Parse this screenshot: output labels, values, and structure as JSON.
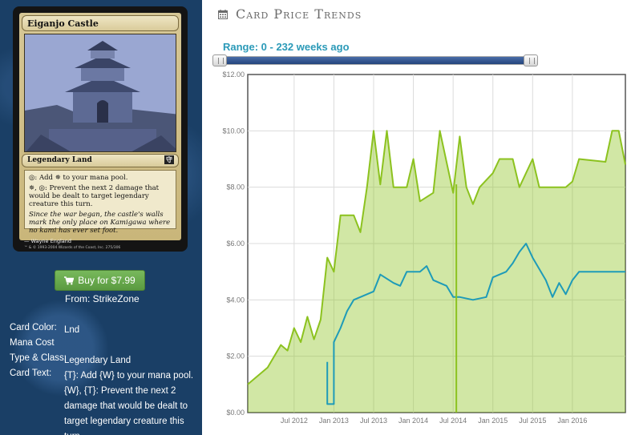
{
  "card": {
    "name": "Eiganjo Castle",
    "type_line": "Legendary Land",
    "set_symbol": "守",
    "rules": [
      "{T}: Add {W} to your mana pool.",
      "{W}, {T}: Prevent the next 2 damage that would be dealt to target legendary creature this turn."
    ],
    "rules_display": [
      "◎: Add ✵ to your mana pool.",
      "✵, ◎: Prevent the next 2 damage that would be dealt to target legendary creature this turn."
    ],
    "flavor": "Since the war began, the castle's walls mark the only place on Kamigawa where no kami has ever set foot.",
    "artist": "Wayne England",
    "copyright": "™ & © 1993-2004 Wizards of the Coast, Inc. 275/306"
  },
  "buy": {
    "label": "Buy for $7.99",
    "icon": "cart-icon",
    "from": "From: StrikeZone"
  },
  "details": [
    {
      "label": "Card Color:",
      "value": "Lnd"
    },
    {
      "label": "Mana Cost",
      "value": ""
    },
    {
      "label": "Type & Class:",
      "value": "Legendary Land"
    },
    {
      "label": "Card Text:",
      "value": "{T}: Add {W} to your mana pool. {W}, {T}: Prevent the next 2 damage that would be dealt to target legendary creature this turn."
    }
  ],
  "section": {
    "title": "Card Price Trends",
    "icon": "calendar-icon"
  },
  "range": {
    "label": "Range: 0 - 232 weeks ago"
  },
  "colors": {
    "accent": "#2b9ab8",
    "buy_green": "#6aab4f",
    "panel_blue": "#1a3f66",
    "series_green": "#8cc21f",
    "series_blue": "#1e9bb8"
  },
  "chart_data": {
    "type": "line",
    "x_ticks": [
      "Jul 2012",
      "Jan 2013",
      "Jul 2013",
      "Jan 2014",
      "Jul 2014",
      "Jan 2015",
      "Jul 2015",
      "Jan 2016"
    ],
    "y_ticks": [
      "$0.00",
      "$2.00",
      "$4.00",
      "$6.00",
      "$8.00",
      "$10.00",
      "$12.00"
    ],
    "ylim": [
      0,
      12
    ],
    "xlim": [
      "2011-12",
      "2016-09"
    ],
    "grid": true,
    "series": [
      {
        "color": "#8cc21f",
        "area": true,
        "points": [
          [
            "2011-12",
            1.0
          ],
          [
            "2012-03",
            1.6
          ],
          [
            "2012-05",
            2.4
          ],
          [
            "2012-06",
            2.2
          ],
          [
            "2012-07",
            3.0
          ],
          [
            "2012-08",
            2.5
          ],
          [
            "2012-09",
            3.4
          ],
          [
            "2012-10",
            2.6
          ],
          [
            "2012-11",
            3.3
          ],
          [
            "2012-12",
            5.5
          ],
          [
            "2013-01",
            5.0
          ],
          [
            "2013-02",
            7.0
          ],
          [
            "2013-04",
            7.0
          ],
          [
            "2013-05",
            6.4
          ],
          [
            "2013-06",
            8.0
          ],
          [
            "2013-07",
            10.0
          ],
          [
            "2013-08",
            8.1
          ],
          [
            "2013-09",
            10.0
          ],
          [
            "2013-10",
            8.0
          ],
          [
            "2013-12",
            8.0
          ],
          [
            "2014-01",
            9.0
          ],
          [
            "2014-02",
            7.5
          ],
          [
            "2014-04",
            7.8
          ],
          [
            "2014-05",
            10.0
          ],
          [
            "2014-07",
            7.8
          ],
          [
            "2014-08",
            9.8
          ],
          [
            "2014-09",
            8.0
          ],
          [
            "2014-10",
            7.4
          ],
          [
            "2014-11",
            8.0
          ],
          [
            "2015-01",
            8.5
          ],
          [
            "2015-02",
            9.0
          ],
          [
            "2015-04",
            9.0
          ],
          [
            "2015-05",
            8.0
          ],
          [
            "2015-07",
            9.0
          ],
          [
            "2015-08",
            8.0
          ],
          [
            "2015-12",
            8.0
          ],
          [
            "2016-01",
            8.2
          ],
          [
            "2016-02",
            9.0
          ],
          [
            "2016-06",
            8.9
          ],
          [
            "2016-07",
            10.0
          ],
          [
            "2016-08",
            10.0
          ],
          [
            "2016-09",
            8.8
          ]
        ]
      },
      {
        "color": "#1e9bb8",
        "area": false,
        "points": [
          [
            "2012-12",
            1.8
          ],
          [
            "2012-12",
            0.3
          ],
          [
            "2013-01",
            0.3
          ],
          [
            "2013-01",
            2.5
          ],
          [
            "2013-02",
            3.0
          ],
          [
            "2013-03",
            3.6
          ],
          [
            "2013-04",
            4.0
          ],
          [
            "2013-05",
            4.1
          ],
          [
            "2013-07",
            4.3
          ],
          [
            "2013-08",
            4.9
          ],
          [
            "2013-10",
            4.6
          ],
          [
            "2013-11",
            4.5
          ],
          [
            "2013-12",
            5.0
          ],
          [
            "2014-02",
            5.0
          ],
          [
            "2014-03",
            5.2
          ],
          [
            "2014-04",
            4.7
          ],
          [
            "2014-06",
            4.5
          ],
          [
            "2014-07",
            4.1
          ],
          [
            "2014-08",
            4.1
          ],
          [
            "2014-10",
            4.0
          ],
          [
            "2014-12",
            4.1
          ],
          [
            "2015-01",
            4.8
          ],
          [
            "2015-03",
            5.0
          ],
          [
            "2015-04",
            5.3
          ],
          [
            "2015-05",
            5.7
          ],
          [
            "2015-06",
            6.0
          ],
          [
            "2015-07",
            5.5
          ],
          [
            "2015-09",
            4.7
          ],
          [
            "2015-10",
            4.1
          ],
          [
            "2015-11",
            4.6
          ],
          [
            "2015-12",
            4.2
          ],
          [
            "2016-01",
            4.7
          ],
          [
            "2016-02",
            5.0
          ],
          [
            "2016-09",
            5.0
          ]
        ]
      }
    ]
  }
}
